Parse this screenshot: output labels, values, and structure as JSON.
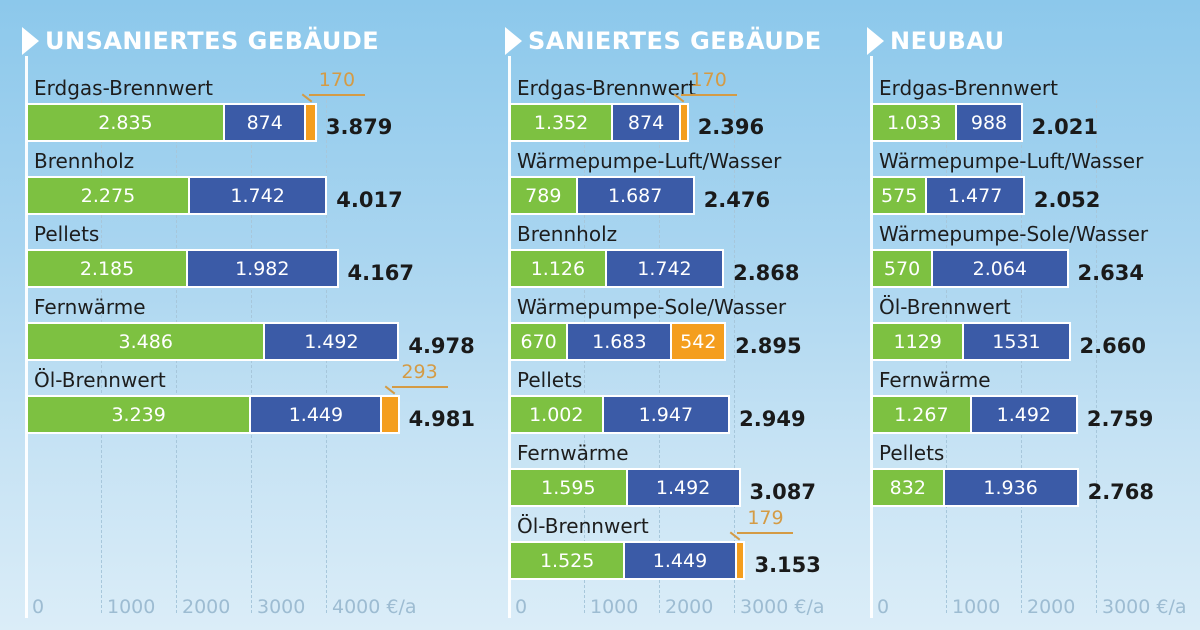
{
  "colors": {
    "green": "#7DC141",
    "blue": "#3B5BA7",
    "orange": "#F49E1E",
    "callout_text": "#D49B45",
    "total_text": "#1A1A1A",
    "category_text": "#1D1D1D",
    "axis_label_text": "#9DBCD2",
    "gridline": "#A7C7DB",
    "title_text": "#FFFFFF"
  },
  "chart_data": [
    {
      "type": "bar",
      "title": "UNSANIERTES GEBÄUDE",
      "unit": "€/a",
      "axis_ticks": [
        0,
        1000,
        2000,
        3000,
        4000
      ],
      "axis_labels": [
        "0",
        "1000",
        "2000",
        "3000",
        "4000 €/a"
      ],
      "xlim": [
        0,
        4500
      ],
      "rows": [
        {
          "label": "Erdgas-Brennwert",
          "total": "3.879",
          "segments": [
            {
              "value": 2835,
              "label": "2.835",
              "color": "green"
            },
            {
              "value": 874,
              "label": "874",
              "color": "blue"
            },
            {
              "value": 170,
              "label": "170",
              "color": "orange",
              "callout": true
            }
          ]
        },
        {
          "label": "Brennholz",
          "total": "4.017",
          "segments": [
            {
              "value": 2275,
              "label": "2.275",
              "color": "green"
            },
            {
              "value": 1742,
              "label": "1.742",
              "color": "blue"
            }
          ]
        },
        {
          "label": "Pellets",
          "total": "4.167",
          "segments": [
            {
              "value": 2185,
              "label": "2.185",
              "color": "green"
            },
            {
              "value": 1982,
              "label": "1.982",
              "color": "blue"
            }
          ]
        },
        {
          "label": "Fernwärme",
          "total": "4.978",
          "segments": [
            {
              "value": 3486,
              "label": "3.486",
              "color": "green"
            },
            {
              "value": 1492,
              "label": "1.492",
              "color": "blue"
            }
          ]
        },
        {
          "label": "Öl-Brennwert",
          "total": "4.981",
          "segments": [
            {
              "value": 3239,
              "label": "3.239",
              "color": "green"
            },
            {
              "value": 1449,
              "label": "1.449",
              "color": "blue"
            },
            {
              "value": 293,
              "label": "293",
              "color": "orange",
              "callout": true
            }
          ]
        }
      ]
    },
    {
      "type": "bar",
      "title": "SANIERTES GEBÄUDE",
      "unit": "€/a",
      "axis_ticks": [
        0,
        1000,
        2000,
        3000
      ],
      "axis_labels": [
        "0",
        "1000",
        "2000",
        "3000 €/a"
      ],
      "xlim": [
        0,
        3300
      ],
      "rows": [
        {
          "label": "Erdgas-Brennwert",
          "total": "2.396",
          "segments": [
            {
              "value": 1352,
              "label": "1.352",
              "color": "green"
            },
            {
              "value": 874,
              "label": "874",
              "color": "blue"
            },
            {
              "value": 170,
              "label": "170",
              "color": "orange",
              "callout": true
            }
          ]
        },
        {
          "label": "Wärmepumpe-Luft/Wasser",
          "total": "2.476",
          "segments": [
            {
              "value": 789,
              "label": "789",
              "color": "green"
            },
            {
              "value": 1687,
              "label": "1.687",
              "color": "blue"
            }
          ]
        },
        {
          "label": "Brennholz",
          "total": "2.868",
          "segments": [
            {
              "value": 1126,
              "label": "1.126",
              "color": "green"
            },
            {
              "value": 1742,
              "label": "1.742",
              "color": "blue"
            }
          ]
        },
        {
          "label": "Wärmepumpe-Sole/Wasser",
          "total": "2.895",
          "segments": [
            {
              "value": 670,
              "label": "670",
              "color": "green"
            },
            {
              "value": 1683,
              "label": "1.683",
              "color": "blue"
            },
            {
              "value": 542,
              "label": "542",
              "color": "orange"
            }
          ]
        },
        {
          "label": "Pellets",
          "total": "2.949",
          "segments": [
            {
              "value": 1002,
              "label": "1.002",
              "color": "green"
            },
            {
              "value": 1947,
              "label": "1.947",
              "color": "blue"
            }
          ]
        },
        {
          "label": "Fernwärme",
          "total": "3.087",
          "segments": [
            {
              "value": 1595,
              "label": "1.595",
              "color": "green"
            },
            {
              "value": 1492,
              "label": "1.492",
              "color": "blue"
            }
          ]
        },
        {
          "label": "Öl-Brennwert",
          "total": "3.153",
          "segments": [
            {
              "value": 1525,
              "label": "1.525",
              "color": "green"
            },
            {
              "value": 1449,
              "label": "1.449",
              "color": "blue"
            },
            {
              "value": 179,
              "label": "179",
              "color": "orange",
              "callout": true
            }
          ]
        }
      ]
    },
    {
      "type": "bar",
      "title": "NEUBAU",
      "unit": "€/a",
      "axis_ticks": [
        0,
        1000,
        2000,
        3000
      ],
      "axis_labels": [
        "0",
        "1000",
        "2000",
        "3000 €/a"
      ],
      "xlim": [
        0,
        3300
      ],
      "rows": [
        {
          "label": "Erdgas-Brennwert",
          "total": "2.021",
          "segments": [
            {
              "value": 1033,
              "label": "1.033",
              "color": "green"
            },
            {
              "value": 988,
              "label": "988",
              "color": "blue"
            }
          ]
        },
        {
          "label": "Wärmepumpe-Luft/Wasser",
          "total": "2.052",
          "segments": [
            {
              "value": 575,
              "label": "575",
              "color": "green"
            },
            {
              "value": 1477,
              "label": "1.477",
              "color": "blue"
            }
          ]
        },
        {
          "label": "Wärmepumpe-Sole/Wasser",
          "total": "2.634",
          "segments": [
            {
              "value": 570,
              "label": "570",
              "color": "green"
            },
            {
              "value": 2064,
              "label": "2.064",
              "color": "blue"
            }
          ]
        },
        {
          "label": "Öl-Brennwert",
          "total": "2.660",
          "segments": [
            {
              "value": 1129,
              "label": "1129",
              "color": "green"
            },
            {
              "value": 1531,
              "label": "1531",
              "color": "blue"
            }
          ]
        },
        {
          "label": "Fernwärme",
          "total": "2.759",
          "segments": [
            {
              "value": 1267,
              "label": "1.267",
              "color": "green"
            },
            {
              "value": 1492,
              "label": "1.492",
              "color": "blue"
            }
          ]
        },
        {
          "label": "Pellets",
          "total": "2.768",
          "segments": [
            {
              "value": 832,
              "label": "832",
              "color": "green"
            },
            {
              "value": 1936,
              "label": "1.936",
              "color": "blue"
            }
          ]
        }
      ]
    }
  ]
}
